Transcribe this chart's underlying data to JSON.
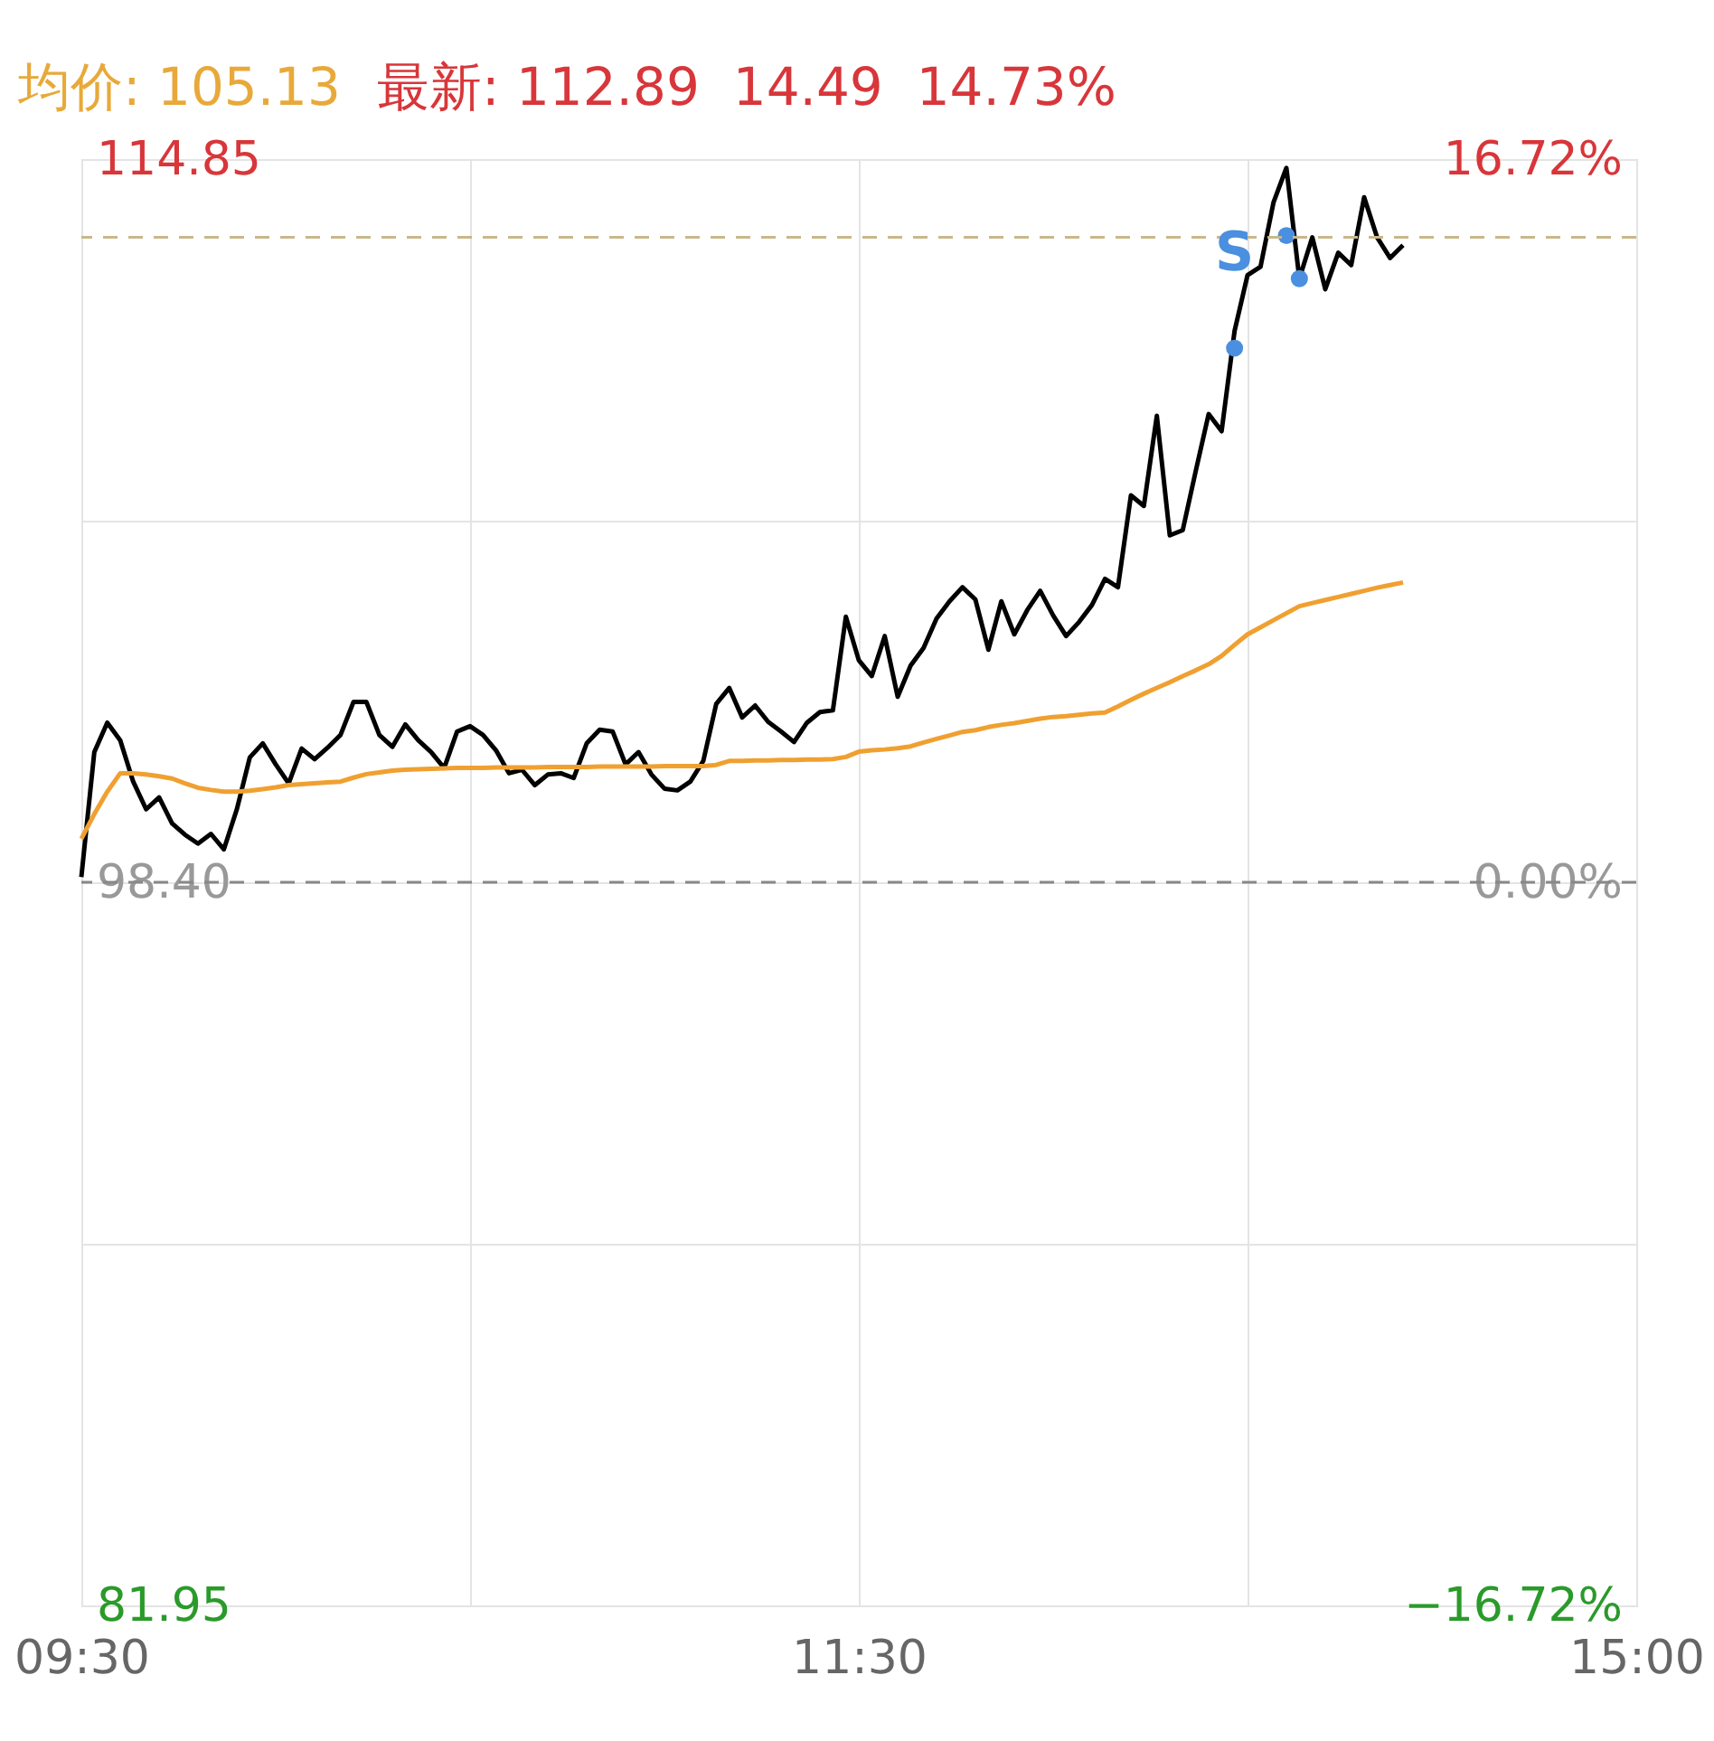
{
  "chart_data": {
    "type": "line",
    "title": "均价: 105.13",
    "subtitle": "最新: 112.89  14.49  14.73%",
    "categories": [
      "09:30",
      null,
      null,
      null,
      null,
      null,
      null,
      null,
      null,
      null,
      null,
      null,
      null,
      null,
      null,
      null,
      null,
      null,
      null,
      null,
      null,
      null,
      null,
      null,
      null,
      null,
      null,
      null,
      null,
      null,
      null,
      null,
      null,
      null,
      null,
      null,
      null,
      null,
      null,
      null,
      null,
      null,
      null,
      null,
      null,
      null,
      null,
      null,
      null,
      null,
      null,
      null,
      null,
      null,
      null,
      null,
      null,
      null,
      null,
      null,
      "11:30",
      null,
      null,
      null,
      null,
      null,
      null,
      null,
      null,
      null,
      null,
      null,
      null,
      null,
      null,
      null,
      null,
      null,
      null,
      null,
      null,
      null,
      null,
      null,
      null,
      null,
      null,
      null,
      null,
      null,
      null,
      null,
      null,
      null,
      null,
      null,
      null,
      null,
      null,
      null,
      null,
      null,
      null,
      null,
      null,
      null,
      null,
      null,
      null,
      null,
      null,
      null,
      null,
      null,
      null,
      null,
      null,
      null,
      null,
      null,
      "15:00"
    ],
    "ylim": [
      81.95,
      114.85
    ],
    "yticks": [
      81.95,
      {
        "value": 90.18,
        "label": null
      },
      {
        "value": 98.4,
        "label": "98.40"
      },
      {
        "value": 106.63,
        "label": null
      },
      114.85
    ],
    "y2lim": [
      -16.72,
      16.72
    ],
    "y2ticks": [
      {
        "value": -16.72,
        "label": "−16.72%"
      },
      {
        "value": 0,
        "label": "0.00%"
      },
      {
        "value": 16.72,
        "label": "16.72%"
      }
    ],
    "grid": true,
    "ref_lines": [
      {
        "axis": "y2",
        "value": 0,
        "color": "#888888",
        "line_style": "dashed"
      },
      {
        "axis": "y",
        "value": 113.07,
        "color": "#c8b88a",
        "line_style": "dashed"
      }
    ],
    "annotations": [
      "S"
    ],
    "series": [
      {
        "color": "#000000",
        "values": [
          98.52,
          101.36,
          102.03,
          101.63,
          100.69,
          100.06,
          100.33,
          99.74,
          99.48,
          99.28,
          99.5,
          99.15,
          100.06,
          101.24,
          101.56,
          101.08,
          100.65,
          101.44,
          101.2,
          101.46,
          101.75,
          102.5,
          102.5,
          101.75,
          101.48,
          101.99,
          101.63,
          101.36,
          101.0,
          101.83,
          101.95,
          101.75,
          101.4,
          100.88,
          100.96,
          100.61,
          100.85,
          100.88,
          100.77,
          101.56,
          101.87,
          101.83,
          101.08,
          101.36,
          100.85,
          100.53,
          100.49,
          100.69,
          101.16,
          102.46,
          102.82,
          102.15,
          102.42,
          102.05,
          101.83,
          101.59,
          102.03,
          102.27,
          102.31,
          104.44,
          103.45,
          103.09,
          104.0,
          102.62,
          103.33,
          103.73,
          104.4,
          104.79,
          105.11,
          104.83,
          103.69,
          104.79,
          104.04,
          104.59,
          105.03,
          104.47,
          104.0,
          104.32,
          104.71,
          105.3,
          105.11,
          107.2,
          106.96,
          109.01,
          106.29,
          106.41,
          107.75,
          109.05,
          108.66,
          110.94,
          112.21,
          112.4,
          113.86,
          114.65,
          112.13,
          113.07,
          111.89,
          112.72,
          112.44,
          113.98,
          113.07,
          112.6,
          112.89,
          null,
          null,
          null,
          null,
          null,
          null,
          null,
          null,
          null,
          null,
          null,
          null,
          null,
          null,
          null,
          null,
          null,
          null
        ]
      },
      {
        "color": "#f0a030",
        "values": [
          99.39,
          99.95,
          100.46,
          100.88,
          100.88,
          100.85,
          100.81,
          100.76,
          100.65,
          100.55,
          100.5,
          100.46,
          100.46,
          100.48,
          100.52,
          100.56,
          100.61,
          100.63,
          100.65,
          100.67,
          100.69,
          100.78,
          100.86,
          100.9,
          100.94,
          100.96,
          100.97,
          100.98,
          100.99,
          101.0,
          101.0,
          101.0,
          101.01,
          101.01,
          101.01,
          101.01,
          101.02,
          101.02,
          101.02,
          101.02,
          101.03,
          101.03,
          101.03,
          101.03,
          101.03,
          101.04,
          101.04,
          101.04,
          101.04,
          101.07,
          101.16,
          101.16,
          101.17,
          101.17,
          101.18,
          101.18,
          101.19,
          101.19,
          101.2,
          101.25,
          101.37,
          101.4,
          101.42,
          101.45,
          101.49,
          101.58,
          101.66,
          101.74,
          101.82,
          101.86,
          101.93,
          101.98,
          102.02,
          102.07,
          102.12,
          102.16,
          102.18,
          102.21,
          102.24,
          102.26,
          102.4,
          102.55,
          102.69,
          102.82,
          102.95,
          103.09,
          103.22,
          103.36,
          103.55,
          103.8,
          104.04,
          104.2,
          104.36,
          104.52,
          104.68,
          104.75,
          104.82,
          104.89,
          104.96,
          105.03,
          105.1,
          105.16,
          105.22,
          null,
          null,
          null,
          null,
          null,
          null,
          null,
          null,
          null,
          null,
          null,
          null,
          null,
          null,
          null,
          null,
          null,
          null
        ]
      },
      {
        "type": "scatter",
        "color": "#4a8fe0",
        "marker": "circle",
        "values": [
          null,
          null,
          null,
          null,
          null,
          null,
          null,
          null,
          null,
          null,
          null,
          null,
          null,
          null,
          null,
          null,
          null,
          null,
          null,
          null,
          null,
          null,
          null,
          null,
          null,
          null,
          null,
          null,
          null,
          null,
          null,
          null,
          null,
          null,
          null,
          null,
          null,
          null,
          null,
          null,
          null,
          null,
          null,
          null,
          null,
          null,
          null,
          null,
          null,
          null,
          null,
          null,
          null,
          null,
          null,
          null,
          null,
          null,
          null,
          null,
          null,
          null,
          null,
          null,
          null,
          null,
          null,
          null,
          null,
          null,
          null,
          null,
          null,
          null,
          null,
          null,
          null,
          null,
          null,
          null,
          null,
          null,
          null,
          null,
          null,
          null,
          null,
          null,
          null,
          110.55,
          null,
          null,
          null,
          113.11,
          112.13,
          null,
          null,
          null,
          null,
          null,
          null,
          null,
          null,
          null,
          null,
          null,
          null,
          null,
          null,
          null,
          null,
          null,
          null,
          null,
          null,
          null,
          null,
          null,
          null,
          null,
          null
        ]
      }
    ]
  }
}
